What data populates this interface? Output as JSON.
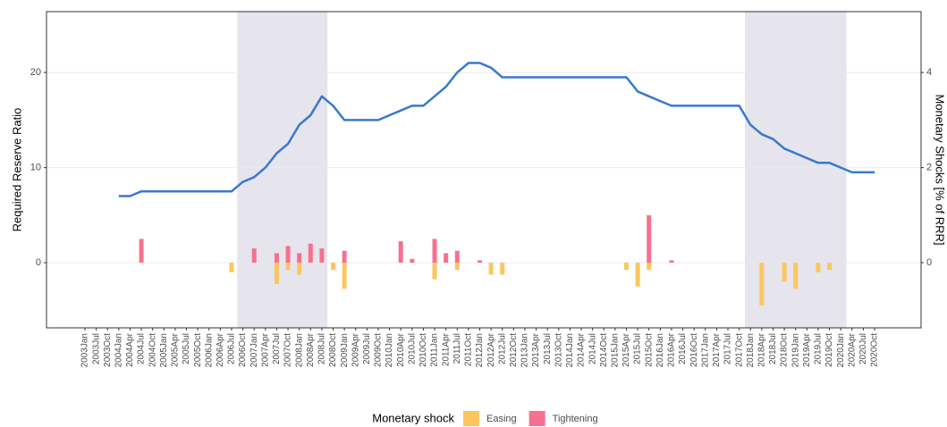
{
  "chart_data": {
    "type": "line-bar",
    "y_label": "Required Reserve Ratio",
    "y2_label": "Monetary Shocks [% of RRR]",
    "legend_title": "Monetary shock",
    "legend": "bottom",
    "grid": true,
    "categories": [
      "2003Jan",
      "2003Jul",
      "2003Oct",
      "2004Jan",
      "2004Apr",
      "2004Jul",
      "2004Oct",
      "2005Jan",
      "2005Apr",
      "2005Jul",
      "2005Oct",
      "2006Jan",
      "2006Apr",
      "2006Jul",
      "2006Oct",
      "2007Jan",
      "2007Apr",
      "2007Jul",
      "2007Oct",
      "2008Jan",
      "2008Apr",
      "2008Jul",
      "2008Oct",
      "2009Jan",
      "2009Apr",
      "2009Jul",
      "2009Oct",
      "2010Jan",
      "2010Apr",
      "2010Jul",
      "2010Oct",
      "2011Jan",
      "2011Apr",
      "2011Jul",
      "2011Oct",
      "2012Jan",
      "2012Apr",
      "2012Jul",
      "2012Oct",
      "2013Jan",
      "2013Apr",
      "2013Jul",
      "2013Oct",
      "2014Jan",
      "2014Apr",
      "2014Jul",
      "2014Oct",
      "2015Jan",
      "2015Apr",
      "2015Jul",
      "2015Oct",
      "2016Jan",
      "2016Apr",
      "2016Jul",
      "2016Oct",
      "2017Jan",
      "2017Apr",
      "2017Jul",
      "2017Oct",
      "2018Jan",
      "2018Apr",
      "2018Jul",
      "2018Oct",
      "2019Jan",
      "2019Apr",
      "2019Jul",
      "2019Oct",
      "2020Jan",
      "2020Apr",
      "2020Jul",
      "2020Oct"
    ],
    "shaded": [
      [
        "2006Jul",
        "2008Jul"
      ],
      [
        "2017Oct",
        "2020Jan"
      ]
    ],
    "shade_color": "#e6e4ec",
    "ylim": [
      -6.85,
      26.4
    ],
    "yticks": [
      0,
      10,
      20
    ],
    "y2lim": [
      -1.37,
      5.28
    ],
    "y2ticks": [
      0,
      2,
      4
    ],
    "series": [
      {
        "name": "Required Reserve Ratio",
        "kind": "line",
        "color": "#3a78cc",
        "values": [
          null,
          null,
          null,
          7,
          7,
          7.5,
          7.5,
          7.5,
          7.5,
          7.5,
          7.5,
          7.5,
          7.5,
          7.5,
          8.5,
          9,
          10,
          11.5,
          12.5,
          14.5,
          15.5,
          17.5,
          16.5,
          15,
          15,
          15,
          15,
          15.5,
          16,
          16.5,
          16.5,
          17.5,
          18.5,
          20,
          21,
          21,
          20.5,
          19.5,
          19.5,
          19.5,
          19.5,
          19.5,
          19.5,
          19.5,
          19.5,
          19.5,
          19.5,
          19.5,
          19.5,
          18,
          17.5,
          17,
          16.5,
          16.5,
          16.5,
          16.5,
          16.5,
          16.5,
          16.5,
          14.5,
          13.5,
          13,
          12,
          11.5,
          11,
          10.5,
          10.5,
          10,
          9.5,
          9.5,
          9.5
        ]
      },
      {
        "name": "Easing",
        "kind": "bar",
        "axis": "y2",
        "color": "#fcc65f",
        "values": [
          null,
          null,
          null,
          null,
          null,
          null,
          null,
          null,
          null,
          null,
          null,
          null,
          null,
          -0.2,
          null,
          null,
          null,
          -0.45,
          -0.15,
          -0.25,
          null,
          null,
          -0.15,
          -0.55,
          null,
          null,
          null,
          null,
          null,
          null,
          null,
          -0.35,
          null,
          -0.15,
          null,
          null,
          -0.25,
          -0.25,
          null,
          null,
          null,
          null,
          null,
          null,
          null,
          null,
          null,
          null,
          -0.15,
          -0.5,
          -0.15,
          null,
          null,
          null,
          null,
          null,
          null,
          null,
          null,
          null,
          -0.9,
          null,
          -0.4,
          -0.55,
          null,
          -0.2,
          -0.15,
          null,
          null,
          null,
          null
        ]
      },
      {
        "name": "Tightening",
        "kind": "bar",
        "axis": "y2",
        "color": "#f6718f",
        "values": [
          null,
          null,
          null,
          null,
          null,
          0.5,
          null,
          null,
          null,
          null,
          null,
          null,
          null,
          null,
          null,
          0.3,
          null,
          0.2,
          0.35,
          0.2,
          0.4,
          0.3,
          null,
          0.25,
          null,
          null,
          null,
          null,
          0.45,
          0.08,
          null,
          0.5,
          0.2,
          0.25,
          null,
          0.05,
          null,
          null,
          null,
          null,
          null,
          null,
          null,
          null,
          null,
          null,
          null,
          null,
          null,
          null,
          1.0,
          null,
          0.05,
          null,
          null,
          null,
          null,
          null,
          null,
          null,
          null,
          null,
          null,
          null,
          null,
          null,
          null,
          null,
          null,
          null,
          null
        ]
      }
    ]
  }
}
